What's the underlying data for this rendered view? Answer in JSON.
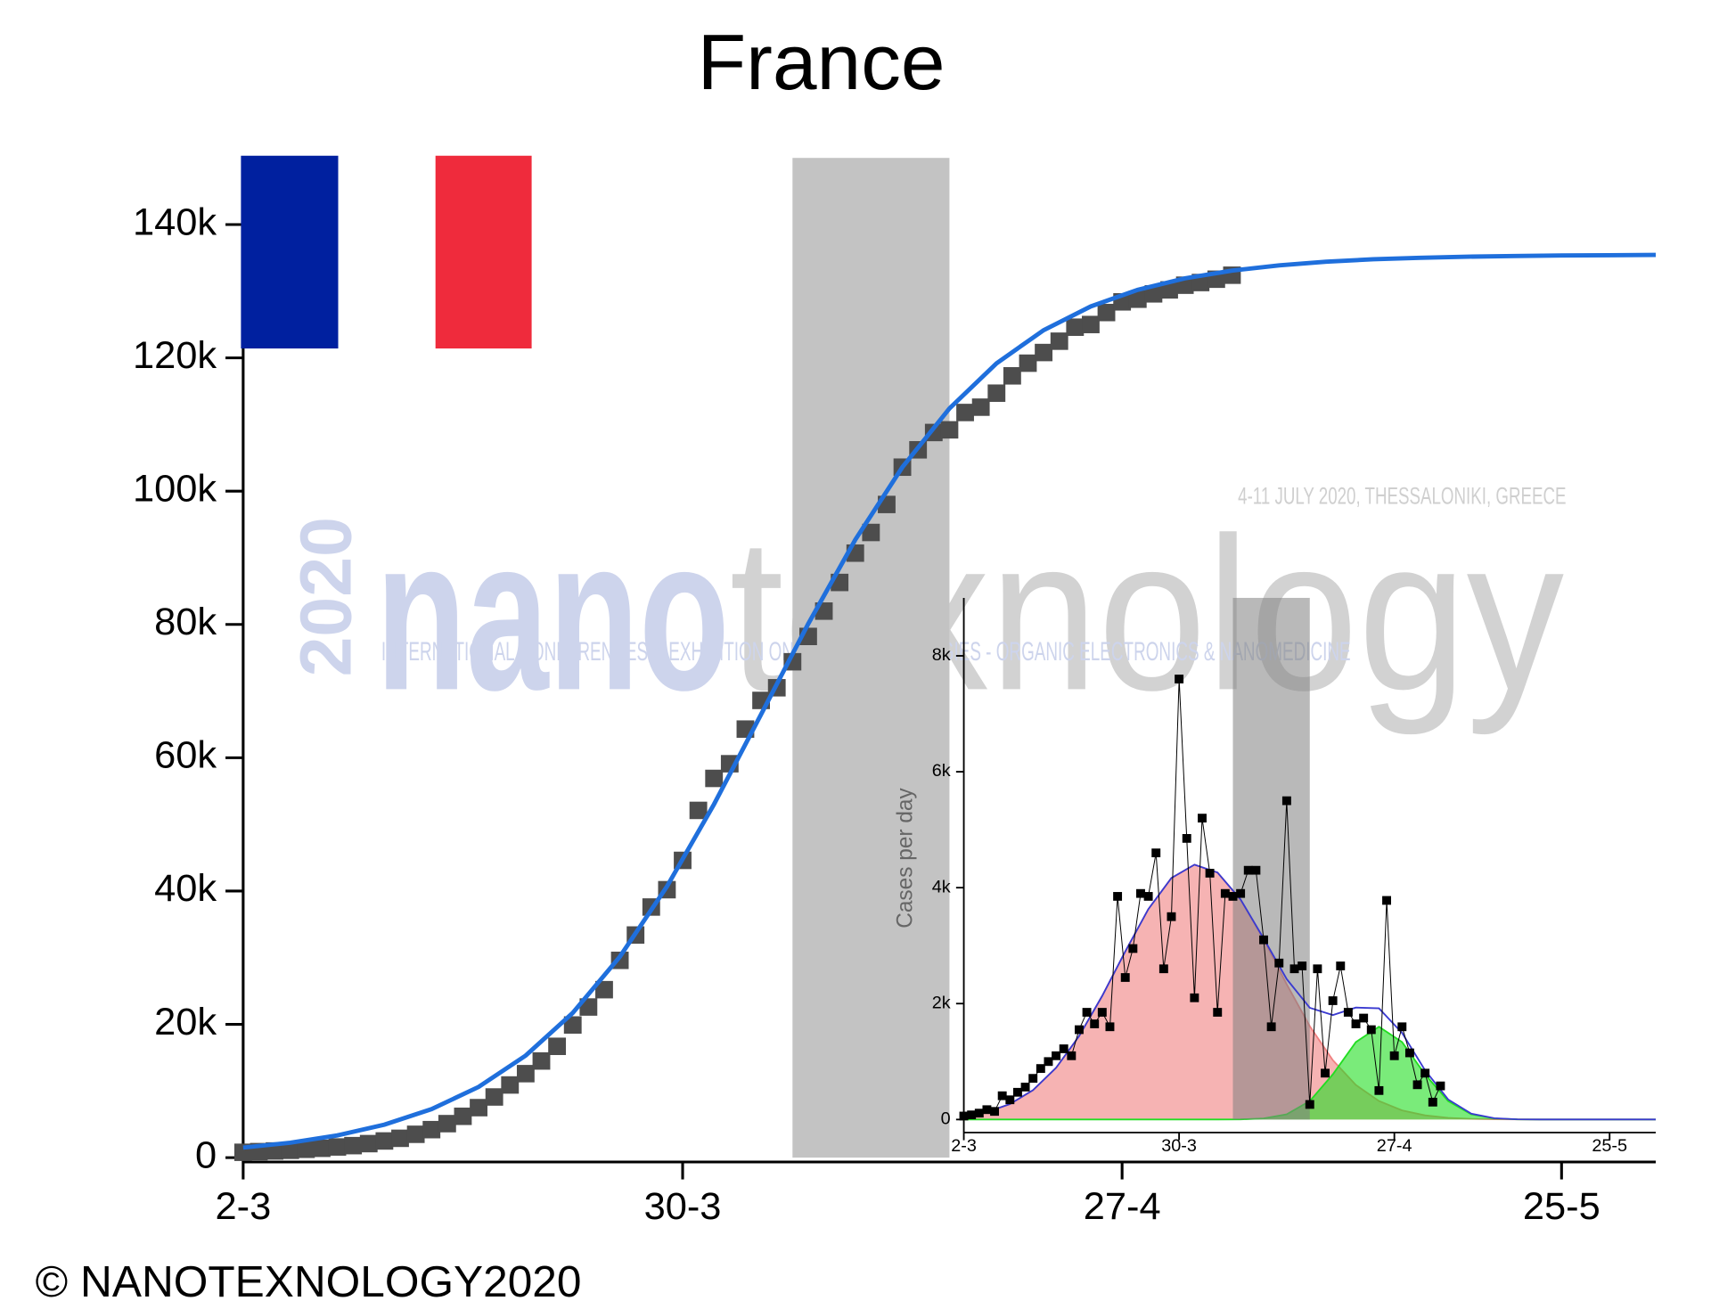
{
  "chart_data": [
    {
      "type": "line",
      "title": "France",
      "xlim": [
        0,
        90
      ],
      "ylim": [
        0,
        150000
      ],
      "xticks": [
        {
          "value": 0,
          "label": "2-3"
        },
        {
          "value": 28,
          "label": "30-3"
        },
        {
          "value": 56,
          "label": "27-4"
        },
        {
          "value": 84,
          "label": "25-5"
        }
      ],
      "yticks": [
        0,
        {
          "value": 20000,
          "label": "20k"
        },
        {
          "value": 40000,
          "label": "40k"
        },
        {
          "value": 60000,
          "label": "60k"
        },
        {
          "value": 80000,
          "label": "80k"
        },
        {
          "value": 100000,
          "label": "100k"
        },
        {
          "value": 120000,
          "label": "120k"
        },
        {
          "value": 140000,
          "label": "140k"
        }
      ],
      "highlight_span": [
        35,
        45
      ],
      "highlight_color": "#c3c3c3",
      "series": [
        {
          "kind": "markers",
          "color": "#4d4d4d",
          "x": [
            0,
            1,
            2,
            3,
            4,
            5,
            6,
            7,
            8,
            9,
            10,
            11,
            12,
            13,
            14,
            15,
            16,
            17,
            18,
            19,
            20,
            21,
            22,
            23,
            24,
            25,
            26,
            27,
            28,
            29,
            30,
            31,
            32,
            33,
            34,
            35,
            36,
            37,
            38,
            39,
            40,
            41,
            42,
            43,
            44,
            45,
            46,
            47,
            48,
            49,
            50,
            51,
            52,
            53,
            54,
            55,
            56,
            57,
            58,
            59,
            60,
            61,
            62,
            63
          ],
          "values": [
            800,
            900,
            1000,
            1100,
            1250,
            1400,
            1600,
            1800,
            2100,
            2500,
            2900,
            3500,
            4200,
            5100,
            6200,
            7500,
            9100,
            10900,
            12600,
            14500,
            16700,
            19900,
            22600,
            25200,
            29600,
            33400,
            37600,
            40200,
            44600,
            52100,
            56900,
            59100,
            64300,
            68600,
            70500,
            74400,
            78200,
            82000,
            86300,
            90700,
            93800,
            98000,
            103600,
            106200,
            108800,
            109200,
            111800,
            112600,
            114700,
            117300,
            119200,
            120800,
            122500,
            124600,
            125000,
            126800,
            128400,
            128800,
            129600,
            130200,
            130900,
            131300,
            131800,
            132400
          ]
        },
        {
          "kind": "line",
          "color": "#1f6fdc",
          "x": [
            0,
            3,
            6,
            9,
            12,
            15,
            18,
            21,
            24,
            27,
            30,
            33,
            36,
            39,
            42,
            45,
            48,
            51,
            54,
            57,
            60,
            63,
            66,
            69,
            72,
            75,
            78,
            81,
            84,
            87,
            90
          ],
          "values": [
            1504,
            2243,
            3338,
            4945,
            7270,
            10610,
            15310,
            21710,
            30140,
            40690,
            53030,
            66520,
            80080,
            92710,
            103590,
            112410,
            119180,
            124150,
            127720,
            130210,
            131920,
            133090,
            133880,
            134420,
            134780,
            135020,
            135180,
            135280,
            135360,
            135400,
            135440
          ]
        }
      ]
    },
    {
      "type": "area",
      "ylabel": "Cases per day",
      "xlim": [
        0,
        90
      ],
      "ylim": [
        0,
        9000
      ],
      "xticks": [
        {
          "value": 0,
          "label": "2-3"
        },
        {
          "value": 28,
          "label": "30-3"
        },
        {
          "value": 56,
          "label": "27-4"
        },
        {
          "value": 84,
          "label": "25-5"
        }
      ],
      "yticks": [
        0,
        {
          "value": 2000,
          "label": "2k"
        },
        {
          "value": 4000,
          "label": "4k"
        },
        {
          "value": 6000,
          "label": "6k"
        },
        {
          "value": 8000,
          "label": "8k"
        }
      ],
      "highlight_span": [
        35,
        45
      ],
      "highlight_color": "#808080",
      "series": [
        {
          "kind": "area",
          "color": "#f08080",
          "x": [
            0,
            3,
            6,
            9,
            12,
            15,
            18,
            21,
            24,
            27,
            30,
            33,
            36,
            39,
            42,
            45,
            48,
            51,
            54,
            57,
            60,
            63,
            66,
            69,
            72,
            75,
            78,
            81,
            84,
            87,
            90
          ],
          "values": [
            56,
            128,
            266,
            508,
            892,
            1439,
            2132,
            2901,
            3628,
            4167,
            4397,
            4262,
            3795,
            3105,
            2334,
            1611,
            1022,
            595,
            319,
            157,
            71,
            29,
            11,
            4,
            1,
            0,
            0,
            0,
            0,
            0,
            0
          ]
        },
        {
          "kind": "area",
          "color": "#22dd22",
          "x": [
            0,
            3,
            6,
            9,
            12,
            15,
            18,
            21,
            24,
            27,
            30,
            33,
            36,
            39,
            42,
            45,
            48,
            51,
            54,
            57,
            60,
            63,
            66,
            69,
            72,
            75,
            78,
            81,
            84,
            87,
            90
          ],
          "values": [
            0,
            0,
            0,
            0,
            0,
            0,
            0,
            0,
            0,
            0,
            0,
            0,
            2,
            18,
            90,
            317,
            779,
            1336,
            1600,
            1336,
            779,
            317,
            90,
            18,
            2,
            0,
            0,
            0,
            0,
            0,
            0
          ]
        },
        {
          "kind": "line",
          "color": "#3a3ad0",
          "x": [
            0,
            3,
            6,
            9,
            12,
            15,
            18,
            21,
            24,
            27,
            30,
            33,
            36,
            39,
            42,
            45,
            48,
            51,
            54,
            57,
            60,
            63,
            66,
            69,
            72,
            75,
            78,
            81,
            84,
            87,
            90
          ],
          "values": [
            56,
            128,
            266,
            508,
            892,
            1439,
            2132,
            2901,
            3628,
            4167,
            4397,
            4262,
            3797,
            3123,
            2424,
            1928,
            1801,
            1931,
            1919,
            1493,
            850,
            346,
            101,
            22,
            3,
            0,
            0,
            0,
            0,
            0,
            0
          ]
        },
        {
          "kind": "markers-line",
          "color": "#000000",
          "x": [
            0,
            1,
            2,
            3,
            4,
            5,
            6,
            7,
            8,
            9,
            10,
            11,
            12,
            13,
            14,
            15,
            16,
            17,
            18,
            19,
            20,
            21,
            22,
            23,
            24,
            25,
            26,
            27,
            28,
            29,
            30,
            31,
            32,
            33,
            34,
            35,
            36,
            37,
            38,
            39,
            40,
            41,
            42,
            43,
            44,
            45,
            46,
            47,
            48,
            49,
            50,
            51,
            52,
            53,
            54,
            55,
            56,
            57,
            58,
            59,
            60,
            61,
            62
          ],
          "values": [
            60,
            80,
            110,
            170,
            140,
            410,
            340,
            470,
            560,
            710,
            880,
            1000,
            1100,
            1220,
            1100,
            1550,
            1850,
            1650,
            1850,
            1600,
            3850,
            2450,
            2950,
            3900,
            3850,
            4600,
            2600,
            3500,
            7600,
            4850,
            2100,
            5200,
            4250,
            1850,
            3900,
            3850,
            3900,
            4300,
            4300,
            3100,
            1600,
            2700,
            5500,
            2600,
            2650,
            260,
            2600,
            800,
            2050,
            2650,
            1850,
            1650,
            1750,
            1550,
            500,
            3780,
            1100,
            1600,
            1150,
            600,
            800,
            300,
            580
          ]
        }
      ]
    }
  ],
  "watermark": {
    "year": "2020",
    "brand_a": "nano",
    "brand_b": "texnology",
    "dates": "4-11 JULY 2020, THESSALONIKI, GREECE",
    "tagline": "INTERNATIONAL CONFERENCES & EXHIBITION ON NANOTECHNOLOGIES - ORGANIC ELECTRONICS & NANOMEDICINE"
  },
  "footer": "© NANOTEXNOLOGY2020"
}
